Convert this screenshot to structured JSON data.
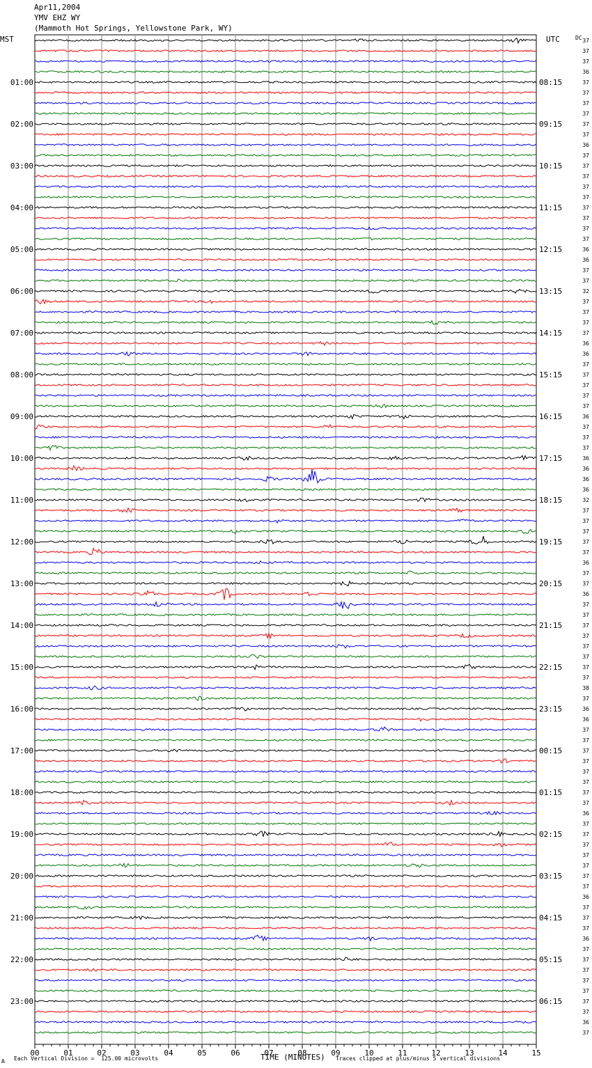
{
  "header": {
    "date": "Apr11,2004",
    "station": "YMV EHZ WY",
    "location": "(Mammoth Hot Springs, Yellowstone Park, WY)"
  },
  "labels": {
    "left_timezone": "MST",
    "right_timezone": "UTC",
    "dc_label": "DC"
  },
  "footer": {
    "scale_note": "Each Vertical Division =  125.00 microvolts",
    "xlabel": "TIME (MINUTES)",
    "clip_note": "Traces clipped at plus/minus 5 vertical divisions",
    "corner_mark": "A"
  },
  "chart_data": {
    "type": "line",
    "title": "YMV EHZ WY seismogram, Apr11,2004",
    "xlabel": "TIME (MINUTES)",
    "xlim": [
      0,
      15
    ],
    "x_ticks": [
      "00",
      "01",
      "02",
      "03",
      "04",
      "05",
      "06",
      "07",
      "08",
      "09",
      "10",
      "11",
      "12",
      "13",
      "14",
      "15"
    ],
    "grid": true,
    "trace_colors": [
      "#000000",
      "#ff0000",
      "#0000ff",
      "#007700"
    ],
    "left_hour_labels": [
      "01:00",
      "02:00",
      "03:00",
      "04:00",
      "05:00",
      "06:00",
      "07:00",
      "08:00",
      "09:00",
      "10:00",
      "11:00",
      "12:00",
      "13:00",
      "14:00",
      "15:00",
      "16:00",
      "17:00",
      "18:00",
      "19:00",
      "20:00",
      "21:00",
      "22:00",
      "23:00"
    ],
    "right_hour_labels": [
      "08:15",
      "09:15",
      "10:15",
      "11:15",
      "12:15",
      "13:15",
      "14:15",
      "15:15",
      "16:15",
      "17:15",
      "18:15",
      "19:15",
      "20:15",
      "21:15",
      "22:15",
      "23:15",
      "00:15",
      "01:15",
      "02:15",
      "03:15",
      "04:15",
      "05:15",
      "06:15"
    ],
    "dc_offsets": [
      "37",
      "37",
      "37",
      "36",
      "37",
      "37",
      "37",
      "37",
      "37",
      "37",
      "36",
      "37",
      "37",
      "37",
      "37",
      "37",
      "37",
      "37",
      "37",
      "37",
      "36",
      "36",
      "37",
      "37",
      "32",
      "37",
      "37",
      "37",
      "37",
      "36",
      "36",
      "37",
      "37",
      "37",
      "37",
      "37",
      "36",
      "37",
      "37",
      "37",
      "36",
      "36",
      "36",
      "36",
      "32",
      "37",
      "37",
      "37",
      "37",
      "37",
      "36",
      "37",
      "37",
      "36",
      "37",
      "37",
      "37",
      "37",
      "37",
      "37",
      "37",
      "37",
      "38",
      "37",
      "36",
      "36",
      "37",
      "37",
      "37",
      "37",
      "37",
      "37",
      "37",
      "37",
      "36",
      "37",
      "37",
      "37",
      "37",
      "37",
      "37",
      "37",
      "36",
      "37",
      "37",
      "37",
      "36",
      "37",
      "37",
      "37",
      "37",
      "37",
      "37",
      "37",
      "36",
      "37"
    ],
    "events": [
      {
        "trace": 0,
        "minute": 14.4,
        "amp": 0.6
      },
      {
        "trace": 0,
        "minute": 9.7,
        "amp": 0.3
      },
      {
        "trace": 18,
        "minute": 10.1,
        "amp": 0.3
      },
      {
        "trace": 19,
        "minute": 10.0,
        "amp": 0.3
      },
      {
        "trace": 23,
        "minute": 4.3,
        "amp": 0.3
      },
      {
        "trace": 24,
        "minute": 10.2,
        "amp": 0.6
      },
      {
        "trace": 24,
        "minute": 14.5,
        "amp": 0.6
      },
      {
        "trace": 25,
        "minute": 0.2,
        "amp": 0.5
      },
      {
        "trace": 25,
        "minute": 5.3,
        "amp": 0.5
      },
      {
        "trace": 27,
        "minute": 12.0,
        "amp": 0.4
      },
      {
        "trace": 29,
        "minute": 8.6,
        "amp": 0.4
      },
      {
        "trace": 30,
        "minute": 2.8,
        "amp": 0.4
      },
      {
        "trace": 30,
        "minute": 8.1,
        "amp": 0.4
      },
      {
        "trace": 35,
        "minute": 10.4,
        "amp": 0.4
      },
      {
        "trace": 36,
        "minute": 9.5,
        "amp": 0.5
      },
      {
        "trace": 36,
        "minute": 11.0,
        "amp": 0.6
      },
      {
        "trace": 37,
        "minute": 0.1,
        "amp": 0.6
      },
      {
        "trace": 37,
        "minute": 8.8,
        "amp": 0.5
      },
      {
        "trace": 39,
        "minute": 0.5,
        "amp": 0.6
      },
      {
        "trace": 40,
        "minute": 6.3,
        "amp": 0.4
      },
      {
        "trace": 40,
        "minute": 10.8,
        "amp": 0.6
      },
      {
        "trace": 40,
        "minute": 14.6,
        "amp": 0.6
      },
      {
        "trace": 41,
        "minute": 1.2,
        "amp": 0.6
      },
      {
        "trace": 42,
        "minute": 8.3,
        "amp": 2.6
      },
      {
        "trace": 42,
        "minute": 7.0,
        "amp": 0.6
      },
      {
        "trace": 44,
        "minute": 6.3,
        "amp": 0.4
      },
      {
        "trace": 44,
        "minute": 11.6,
        "amp": 0.4
      },
      {
        "trace": 45,
        "minute": 2.8,
        "amp": 0.9
      },
      {
        "trace": 45,
        "minute": 12.6,
        "amp": 0.5
      },
      {
        "trace": 46,
        "minute": 7.3,
        "amp": 0.4
      },
      {
        "trace": 46,
        "minute": 12.8,
        "amp": 0.4
      },
      {
        "trace": 47,
        "minute": 6.0,
        "amp": 0.5
      },
      {
        "trace": 47,
        "minute": 14.7,
        "amp": 0.5
      },
      {
        "trace": 48,
        "minute": 13.3,
        "amp": 2.2
      },
      {
        "trace": 48,
        "minute": 7.0,
        "amp": 0.7
      },
      {
        "trace": 48,
        "minute": 11.0,
        "amp": 0.6
      },
      {
        "trace": 49,
        "minute": 1.8,
        "amp": 0.9
      },
      {
        "trace": 50,
        "minute": 6.8,
        "amp": 0.4
      },
      {
        "trace": 51,
        "minute": 11.3,
        "amp": 0.5
      },
      {
        "trace": 52,
        "minute": 9.3,
        "amp": 0.6
      },
      {
        "trace": 53,
        "minute": 5.7,
        "amp": 1.6
      },
      {
        "trace": 53,
        "minute": 3.4,
        "amp": 0.8
      },
      {
        "trace": 53,
        "minute": 8.2,
        "amp": 0.6
      },
      {
        "trace": 54,
        "minute": 9.3,
        "amp": 1.6
      },
      {
        "trace": 54,
        "minute": 3.7,
        "amp": 0.6
      },
      {
        "trace": 57,
        "minute": 7.0,
        "amp": 0.5
      },
      {
        "trace": 57,
        "minute": 12.9,
        "amp": 0.5
      },
      {
        "trace": 58,
        "minute": 9.2,
        "amp": 0.5
      },
      {
        "trace": 59,
        "minute": 6.6,
        "amp": 0.5
      },
      {
        "trace": 60,
        "minute": 6.5,
        "amp": 0.6
      },
      {
        "trace": 60,
        "minute": 13.0,
        "amp": 0.6
      },
      {
        "trace": 62,
        "minute": 1.8,
        "amp": 0.5
      },
      {
        "trace": 63,
        "minute": 4.9,
        "amp": 0.5
      },
      {
        "trace": 64,
        "minute": 6.2,
        "amp": 0.5
      },
      {
        "trace": 65,
        "minute": 11.5,
        "amp": 0.4
      },
      {
        "trace": 66,
        "minute": 10.4,
        "amp": 0.6
      },
      {
        "trace": 68,
        "minute": 4.2,
        "amp": 0.4
      },
      {
        "trace": 69,
        "minute": 14.0,
        "amp": 0.4
      },
      {
        "trace": 73,
        "minute": 1.5,
        "amp": 0.5
      },
      {
        "trace": 73,
        "minute": 12.4,
        "amp": 0.5
      },
      {
        "trace": 74,
        "minute": 13.7,
        "amp": 0.4
      },
      {
        "trace": 76,
        "minute": 6.8,
        "amp": 0.7
      },
      {
        "trace": 76,
        "minute": 13.8,
        "amp": 0.6
      },
      {
        "trace": 77,
        "minute": 10.6,
        "amp": 0.5
      },
      {
        "trace": 77,
        "minute": 13.9,
        "amp": 0.5
      },
      {
        "trace": 79,
        "minute": 2.7,
        "amp": 0.5
      },
      {
        "trace": 79,
        "minute": 11.4,
        "amp": 0.5
      },
      {
        "trace": 83,
        "minute": 1.5,
        "amp": 0.5
      },
      {
        "trace": 84,
        "minute": 3.1,
        "amp": 0.4
      },
      {
        "trace": 86,
        "minute": 6.7,
        "amp": 0.8
      },
      {
        "trace": 86,
        "minute": 10.0,
        "amp": 0.5
      },
      {
        "trace": 88,
        "minute": 9.3,
        "amp": 0.4
      },
      {
        "trace": 89,
        "minute": 1.8,
        "amp": 0.3
      },
      {
        "trace": 94,
        "minute": 14.5,
        "amp": 0.4
      }
    ]
  }
}
